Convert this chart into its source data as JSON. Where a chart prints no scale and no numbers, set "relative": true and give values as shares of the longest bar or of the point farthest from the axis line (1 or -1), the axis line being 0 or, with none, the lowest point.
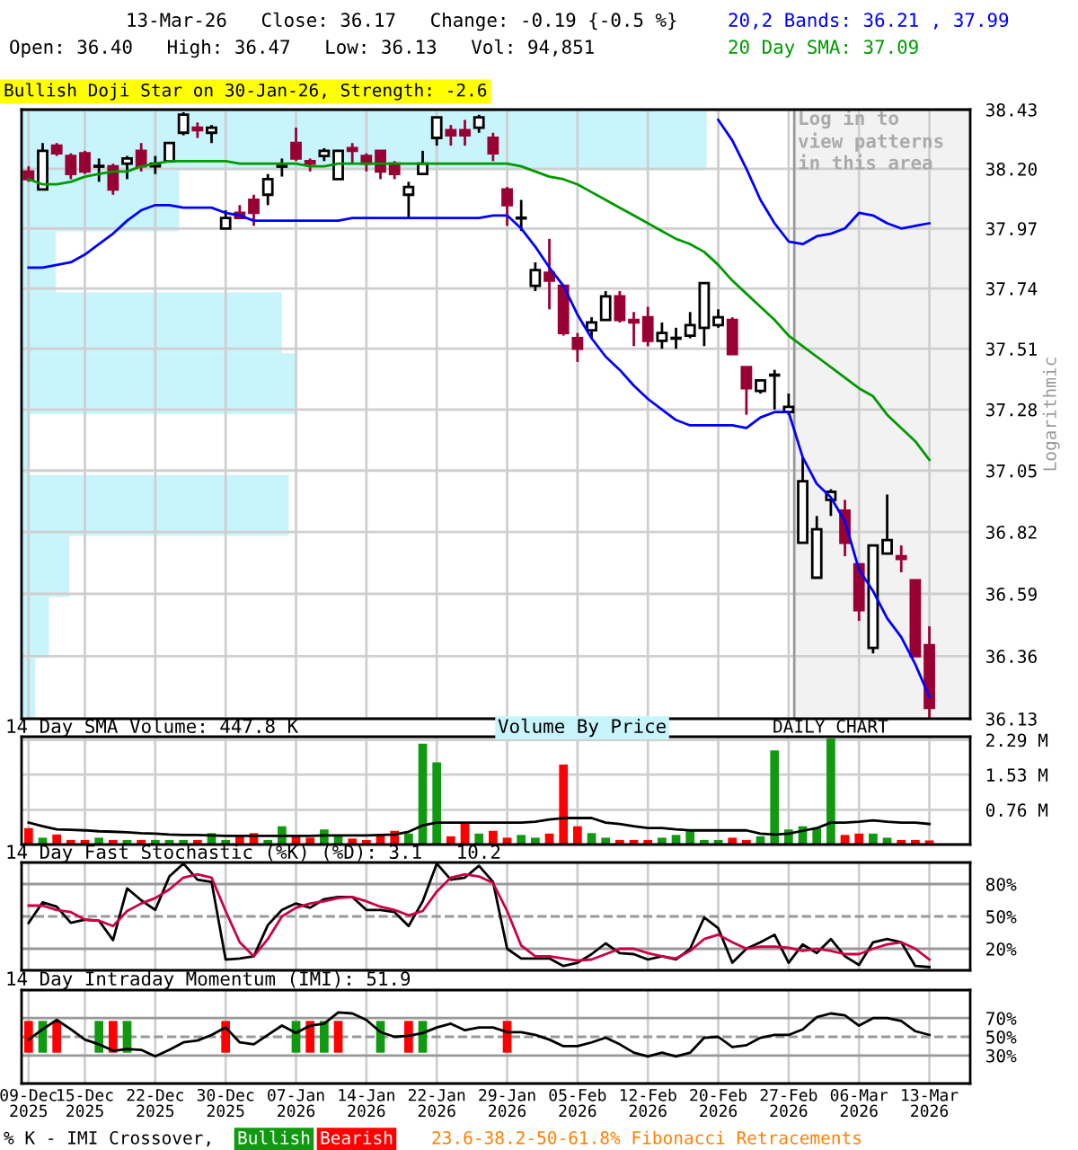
{
  "chart_data": [
    {
      "type": "candlestick",
      "title": "13-Mar-26   Close: 36.17   Change: -0.19 {-0.5 %}",
      "subtitle": "Open: 36.40   High: 36.47   Low: 36.13   Vol: 94,851",
      "ylabel": "Logarithmic",
      "annotations": [
        "Bullish Doji Star on 30-Jan-26, Strength: -2.6",
        "DAILY CHART"
      ],
      "categories": [
        "09-Dec 2025",
        null,
        null,
        null,
        "15-Dec 2025",
        null,
        null,
        null,
        null,
        "22-Dec 2025",
        null,
        null,
        null,
        null,
        "30-Dec 2025",
        null,
        null,
        null,
        null,
        "07-Jan 2026",
        null,
        null,
        null,
        null,
        "14-Jan 2026",
        null,
        null,
        null,
        null,
        "22-Jan 2026",
        null,
        null,
        null,
        null,
        "29-Jan 2026",
        null,
        null,
        null,
        null,
        "05-Feb 2026",
        null,
        null,
        null,
        null,
        "12-Feb 2026",
        null,
        null,
        null,
        null,
        "20-Feb 2026",
        null,
        null,
        null,
        null,
        "27-Feb 2026",
        null,
        null,
        null,
        null,
        "06-Mar 2026",
        null,
        null,
        null,
        null,
        "13-Mar 2026"
      ],
      "ohlc": [
        [
          38.19,
          38.21,
          38.15,
          38.16
        ],
        [
          38.12,
          38.3,
          38.12,
          38.27
        ],
        [
          38.29,
          38.3,
          38.25,
          38.26
        ],
        [
          38.25,
          38.26,
          38.16,
          38.18
        ],
        [
          38.26,
          38.27,
          38.18,
          38.19
        ],
        [
          38.21,
          38.24,
          38.15,
          38.21
        ],
        [
          38.21,
          38.22,
          38.1,
          38.12
        ],
        [
          38.22,
          38.25,
          38.16,
          38.24
        ],
        [
          38.27,
          38.3,
          38.19,
          38.21
        ],
        [
          38.21,
          38.25,
          38.18,
          38.22
        ],
        [
          38.23,
          38.3,
          38.23,
          38.3
        ],
        [
          38.34,
          38.42,
          38.33,
          38.41
        ],
        [
          38.36,
          38.38,
          38.32,
          38.35
        ],
        [
          38.34,
          38.37,
          38.3,
          38.36
        ],
        [
          37.97,
          38.04,
          37.97,
          38.01
        ],
        [
          38.03,
          38.06,
          38.01,
          38.01
        ],
        [
          38.08,
          38.1,
          37.98,
          38.03
        ],
        [
          38.1,
          38.18,
          38.06,
          38.16
        ],
        [
          38.21,
          38.24,
          38.17,
          38.21
        ],
        [
          38.3,
          38.36,
          38.23,
          38.24
        ],
        [
          38.23,
          38.24,
          38.19,
          38.22
        ],
        [
          38.25,
          38.28,
          38.23,
          38.27
        ],
        [
          38.16,
          38.27,
          38.16,
          38.27
        ],
        [
          38.28,
          38.3,
          38.22,
          38.27
        ],
        [
          38.25,
          38.26,
          38.19,
          38.22
        ],
        [
          38.27,
          38.27,
          38.16,
          38.19
        ],
        [
          38.22,
          38.23,
          38.16,
          38.18
        ],
        [
          38.1,
          38.15,
          38.01,
          38.13
        ],
        [
          38.18,
          38.27,
          38.18,
          38.22
        ],
        [
          38.32,
          38.4,
          38.29,
          38.4
        ],
        [
          38.35,
          38.37,
          38.29,
          38.33
        ],
        [
          38.35,
          38.39,
          38.29,
          38.33
        ],
        [
          38.36,
          38.41,
          38.34,
          38.4
        ],
        [
          38.32,
          38.34,
          38.23,
          38.26
        ],
        [
          38.12,
          38.13,
          37.98,
          38.06
        ],
        [
          38.01,
          38.08,
          37.96,
          38.01
        ],
        [
          37.75,
          37.84,
          37.73,
          37.81
        ],
        [
          37.8,
          37.93,
          37.66,
          37.77
        ],
        [
          37.75,
          37.75,
          37.56,
          37.57
        ],
        [
          37.55,
          37.57,
          37.46,
          37.51
        ],
        [
          37.58,
          37.63,
          37.55,
          37.61
        ],
        [
          37.62,
          37.73,
          37.62,
          37.71
        ],
        [
          37.71,
          37.73,
          37.61,
          37.62
        ],
        [
          37.62,
          37.65,
          37.52,
          37.61
        ],
        [
          37.63,
          37.67,
          37.52,
          37.54
        ],
        [
          37.54,
          37.61,
          37.51,
          37.57
        ],
        [
          37.55,
          37.59,
          37.51,
          37.55
        ],
        [
          37.56,
          37.65,
          37.55,
          37.6
        ],
        [
          37.59,
          37.76,
          37.52,
          37.76
        ],
        [
          37.6,
          37.66,
          37.59,
          37.63
        ],
        [
          37.62,
          37.63,
          37.49,
          37.49
        ],
        [
          37.44,
          37.44,
          37.26,
          37.36
        ],
        [
          37.35,
          37.39,
          37.34,
          37.39
        ],
        [
          37.41,
          37.43,
          37.28,
          37.41
        ],
        [
          37.27,
          37.34,
          37.26,
          37.29
        ],
        [
          36.78,
          37.1,
          36.78,
          37.01
        ],
        [
          36.65,
          36.88,
          36.65,
          36.83
        ],
        [
          36.94,
          36.98,
          36.88,
          36.97
        ],
        [
          36.9,
          36.94,
          36.73,
          36.78
        ],
        [
          36.7,
          36.7,
          36.49,
          36.53
        ],
        [
          36.39,
          36.77,
          36.37,
          36.77
        ],
        [
          36.74,
          36.96,
          36.74,
          36.79
        ],
        [
          36.73,
          36.77,
          36.67,
          36.72
        ],
        [
          36.64,
          36.64,
          36.36,
          36.36
        ],
        [
          36.4,
          36.47,
          36.13,
          36.17
        ]
      ],
      "colors": [
        "#990033",
        "#ffffff",
        "#990033",
        "#990033",
        "#990033",
        "#000000",
        "#990033",
        "#ffffff",
        "#990033",
        "#ffffff",
        "#ffffff",
        "#ffffff",
        "#990033",
        "#ffffff",
        "#ffffff",
        "#990033",
        "#990033",
        "#ffffff",
        "#000000",
        "#990033",
        "#990033",
        "#ffffff",
        "#ffffff",
        "#990033",
        "#990033",
        "#990033",
        "#990033",
        "#ffffff",
        "#ffffff",
        "#ffffff",
        "#990033",
        "#990033",
        "#ffffff",
        "#990033",
        "#990033",
        "#000000",
        "#ffffff",
        "#990033",
        "#990033",
        "#990033",
        "#ffffff",
        "#ffffff",
        "#990033",
        "#990033",
        "#990033",
        "#ffffff",
        "#000000",
        "#ffffff",
        "#ffffff",
        "#ffffff",
        "#990033",
        "#990033",
        "#ffffff",
        "#000000",
        "#ffffff",
        "#ffffff",
        "#ffffff",
        "#ffffff",
        "#990033",
        "#990033",
        "#ffffff",
        "#ffffff",
        "#990033",
        "#990033",
        "#990033"
      ],
      "series": [
        {
          "type": "line",
          "name": "20,2 Bands: 36.21 , 37.99",
          "color": "#0000ff",
          "values": [
            37.82,
            37.82,
            37.83,
            37.84,
            37.87,
            37.91,
            37.95,
            38.0,
            38.04,
            38.06,
            38.06,
            38.05,
            38.05,
            38.05,
            38.03,
            38.02,
            38.0,
            38.0,
            38.0,
            38.0,
            38.0,
            38.0,
            38.0,
            38.01,
            38.01,
            38.01,
            38.01,
            38.01,
            38.01,
            38.01,
            38.01,
            38.01,
            38.01,
            38.02,
            38.02,
            37.97,
            37.9,
            37.82,
            37.75,
            37.64,
            37.55,
            37.48,
            37.43,
            37.37,
            37.32,
            37.28,
            37.24,
            37.22,
            37.22,
            37.22,
            37.22,
            37.21,
            37.25,
            37.27,
            37.27,
            37.1,
            37.0,
            36.95,
            36.86,
            36.68,
            36.6,
            36.5,
            36.43,
            36.33,
            36.21
          ]
        },
        {
          "type": "line",
          "color": "#0000ff",
          "values": [
            null,
            null,
            null,
            null,
            null,
            null,
            null,
            null,
            null,
            null,
            null,
            null,
            null,
            null,
            null,
            null,
            null,
            null,
            null,
            null,
            null,
            null,
            null,
            null,
            null,
            null,
            null,
            null,
            null,
            null,
            null,
            null,
            null,
            null,
            null,
            null,
            null,
            null,
            null,
            null,
            null,
            null,
            null,
            null,
            null,
            null,
            null,
            null,
            null,
            38.39,
            38.31,
            38.2,
            38.08,
            37.99,
            37.92,
            37.91,
            37.94,
            37.95,
            37.97,
            38.03,
            38.02,
            37.99,
            37.97,
            37.98,
            37.99
          ]
        },
        {
          "type": "line",
          "name": "20 Day SMA: 37.09",
          "color": "#009900",
          "values": [
            38.16,
            38.14,
            38.14,
            38.15,
            38.17,
            38.18,
            38.19,
            38.19,
            38.21,
            38.22,
            38.23,
            38.23,
            38.23,
            38.23,
            38.23,
            38.22,
            38.22,
            38.22,
            38.22,
            38.22,
            38.21,
            38.21,
            38.22,
            38.22,
            38.22,
            38.22,
            38.22,
            38.22,
            38.22,
            38.22,
            38.22,
            38.22,
            38.22,
            38.22,
            38.22,
            38.21,
            38.19,
            38.17,
            38.16,
            38.14,
            38.11,
            38.08,
            38.05,
            38.02,
            37.99,
            37.96,
            37.93,
            37.91,
            37.88,
            37.83,
            37.77,
            37.72,
            37.67,
            37.62,
            37.56,
            37.52,
            37.48,
            37.44,
            37.4,
            37.36,
            37.33,
            37.26,
            37.21,
            37.16,
            37.09
          ]
        }
      ],
      "ylim": [
        36.13,
        38.43
      ],
      "yticks": [
        36.13,
        36.36,
        36.59,
        36.82,
        37.05,
        37.28,
        37.51,
        37.74,
        37.97,
        {
          "value": 38.2,
          "label": "38.20"
        },
        38.43
      ],
      "log": "y",
      "grid": true,
      "tick_labels": "y",
      "legend": "top right",
      "bands": [
        {
          "axis": "x",
          "from": "27-Feb 2026",
          "to": "13-Mar 2026",
          "label": "Log in to view patterns in this area",
          "color": "#f2f2f2"
        }
      ]
    },
    {
      "type": "bar",
      "orientation": "horizontal",
      "relative": true,
      "title": "Volume By Price",
      "categories": [
        null,
        null,
        null,
        null,
        null,
        null,
        null,
        null,
        null,
        null
      ],
      "values": [
        1.0,
        0.23,
        0.05,
        0.38,
        0.4,
        0.01,
        0.39,
        0.07,
        0.04,
        0.02
      ],
      "color": "#c8f4fc"
    },
    {
      "type": "bar",
      "title": "14 Day SMA Volume: 447.8 K",
      "categories": [
        "09-Dec 2025",
        null,
        null,
        null,
        "15-Dec 2025",
        null,
        null,
        null,
        null,
        "22-Dec 2025",
        null,
        null,
        null,
        null,
        "30-Dec 2025",
        null,
        null,
        null,
        null,
        "07-Jan 2026",
        null,
        null,
        null,
        null,
        "14-Jan 2026",
        null,
        null,
        null,
        null,
        "22-Jan 2026",
        null,
        null,
        null,
        null,
        "29-Jan 2026",
        null,
        null,
        null,
        null,
        "05-Feb 2026",
        null,
        null,
        null,
        null,
        "12-Feb 2026",
        null,
        null,
        null,
        null,
        "20-Feb 2026",
        null,
        null,
        null,
        null,
        "27-Feb 2026",
        null,
        null,
        null,
        null,
        "06-Mar 2026",
        null,
        null,
        null,
        null,
        "13-Mar 2026"
      ],
      "series": [
        {
          "values": [
            0.36,
            0.15,
            0.22,
            0.1,
            0.1,
            0.15,
            0.1,
            0.1,
            0.1,
            0.1,
            0.1,
            0.1,
            0.1,
            0.25,
            0.1,
            0.21,
            0.25,
            0.1,
            0.4,
            0.21,
            0.15,
            0.33,
            0.21,
            0.13,
            0.1,
            0.21,
            0.3,
            0.24,
            2.21,
            1.8,
            0.18,
            0.46,
            0.24,
            0.3,
            0.15,
            0.21,
            0.15,
            0.24,
            1.75,
            0.4,
            0.25,
            0.15,
            0.1,
            0.1,
            0.1,
            0.15,
            0.21,
            0.33,
            0.1,
            0.1,
            0.15,
            0.1,
            0.18,
            2.06,
            0.33,
            0.4,
            0.36,
            2.32,
            0.21,
            0.24,
            0.24,
            0.15,
            0.1,
            0.1,
            0.09
          ],
          "colors": [
            "#ff0000",
            "#119911",
            "#ff0000",
            "#ff0000",
            "#ff0000",
            "#119911",
            "#ff0000",
            "#119911",
            "#ff0000",
            "#119911",
            "#119911",
            "#119911",
            "#ff0000",
            "#119911",
            "#119911",
            "#ff0000",
            "#ff0000",
            "#119911",
            "#119911",
            "#ff0000",
            "#ff0000",
            "#119911",
            "#119911",
            "#ff0000",
            "#ff0000",
            "#ff0000",
            "#ff0000",
            "#119911",
            "#119911",
            "#119911",
            "#ff0000",
            "#ff0000",
            "#119911",
            "#ff0000",
            "#ff0000",
            "#119911",
            "#119911",
            "#ff0000",
            "#ff0000",
            "#ff0000",
            "#119911",
            "#119911",
            "#ff0000",
            "#ff0000",
            "#ff0000",
            "#119911",
            "#119911",
            "#119911",
            "#119911",
            "#119911",
            "#ff0000",
            "#ff0000",
            "#119911",
            "#119911",
            "#119911",
            "#119911",
            "#119911",
            "#119911",
            "#ff0000",
            "#ff0000",
            "#119911",
            "#119911",
            "#ff0000",
            "#ff0000",
            "#ff0000"
          ]
        },
        {
          "type": "line",
          "color": "#000000",
          "values": [
            0.48,
            0.4,
            0.33,
            0.32,
            0.31,
            0.29,
            0.28,
            0.27,
            0.25,
            0.24,
            0.22,
            0.21,
            0.21,
            0.2,
            0.19,
            0.19,
            0.19,
            0.19,
            0.19,
            0.19,
            0.19,
            0.2,
            0.2,
            0.2,
            0.2,
            0.21,
            0.22,
            0.28,
            0.42,
            0.48,
            0.48,
            0.48,
            0.48,
            0.48,
            0.48,
            0.48,
            0.5,
            0.55,
            0.58,
            0.58,
            0.58,
            0.48,
            0.45,
            0.4,
            0.36,
            0.36,
            0.33,
            0.31,
            0.31,
            0.31,
            0.31,
            0.31,
            0.24,
            0.22,
            0.24,
            0.3,
            0.36,
            0.48,
            0.48,
            0.5,
            0.53,
            0.5,
            0.48,
            0.48,
            0.45
          ]
        }
      ],
      "ylim": [
        0,
        2.36
      ],
      "yticks": [
        {
          "value": 0.76,
          "label": "0.76 M"
        },
        {
          "value": 1.53,
          "label": "1.53 M"
        },
        {
          "value": 2.29,
          "label": "2.29 M"
        }
      ],
      "grid": true,
      "tick_labels": "y"
    },
    {
      "type": "line",
      "title": "14 Day Fast Stochastic (%K) (%D): 3.1   10.2",
      "categories": [
        "09-Dec 2025",
        null,
        null,
        null,
        "15-Dec 2025",
        null,
        null,
        null,
        null,
        "22-Dec 2025",
        null,
        null,
        null,
        null,
        "30-Dec 2025",
        null,
        null,
        null,
        null,
        "07-Jan 2026",
        null,
        null,
        null,
        null,
        "14-Jan 2026",
        null,
        null,
        null,
        null,
        "22-Jan 2026",
        null,
        null,
        null,
        null,
        "29-Jan 2026",
        null,
        null,
        null,
        null,
        "05-Feb 2026",
        null,
        null,
        null,
        null,
        "12-Feb 2026",
        null,
        null,
        null,
        null,
        "20-Feb 2026",
        null,
        null,
        null,
        null,
        "27-Feb 2026",
        null,
        null,
        null,
        null,
        "06-Mar 2026",
        null,
        null,
        null,
        null,
        "13-Mar 2026"
      ],
      "series": [
        {
          "color": "#000000",
          "values": [
            44,
            63,
            59,
            44,
            47,
            46,
            28,
            76,
            65,
            56,
            87,
            99,
            84,
            82,
            10,
            11,
            13,
            42,
            56,
            62,
            58,
            66,
            68,
            68,
            56,
            56,
            54,
            41,
            64,
            99,
            84,
            86,
            97,
            82,
            20,
            11,
            11,
            11,
            4,
            7,
            15,
            25,
            16,
            15,
            10,
            13,
            10,
            20,
            49,
            39,
            7,
            20,
            26,
            33,
            7,
            24,
            16,
            29,
            13,
            5,
            26,
            29,
            26,
            4,
            3
          ]
        },
        {
          "color": "#cc0044",
          "values": [
            60,
            60,
            56,
            54,
            47,
            46,
            41,
            55,
            62,
            67,
            75,
            86,
            89,
            86,
            55,
            26,
            13,
            29,
            50,
            58,
            62,
            64,
            67,
            68,
            64,
            59,
            56,
            51,
            55,
            73,
            86,
            89,
            87,
            81,
            55,
            23,
            13,
            13,
            11,
            9,
            10,
            15,
            20,
            20,
            16,
            13,
            11,
            18,
            29,
            33,
            26,
            20,
            22,
            22,
            21,
            18,
            20,
            18,
            15,
            15,
            20,
            24,
            26,
            20,
            10
          ]
        }
      ],
      "ylim": [
        0,
        100
      ],
      "yticks": [
        {
          "value": 20,
          "label": "20%"
        },
        {
          "value": 50,
          "label": "50%"
        },
        {
          "value": 80,
          "label": "80%"
        }
      ],
      "grid": "x",
      "tick_labels": "y",
      "ref_lines": [
        {
          "axis": "y",
          "value": 20,
          "color": "#999999"
        },
        {
          "axis": "y",
          "value": 50,
          "color": "#999999",
          "line_style": "dashed"
        },
        {
          "axis": "y",
          "value": 80,
          "color": "#999999"
        }
      ]
    },
    {
      "type": "line",
      "title": "14 Day Intraday Momentum (IMI): 51.9",
      "annotations": [
        "% K - IMI Crossover,",
        "23.6-38.2-50-61.8% Fibonacci Retracements"
      ],
      "categories": [
        "09-Dec 2025",
        null,
        null,
        null,
        "15-Dec 2025",
        null,
        null,
        null,
        null,
        "22-Dec 2025",
        null,
        null,
        null,
        null,
        "30-Dec 2025",
        null,
        null,
        null,
        null,
        "07-Jan 2026",
        null,
        null,
        null,
        null,
        "14-Jan 2026",
        null,
        null,
        null,
        null,
        "22-Jan 2026",
        null,
        null,
        null,
        null,
        "29-Jan 2026",
        null,
        null,
        null,
        null,
        "05-Feb 2026",
        null,
        null,
        null,
        null,
        "12-Feb 2026",
        null,
        null,
        null,
        null,
        "20-Feb 2026",
        null,
        null,
        null,
        null,
        "27-Feb 2026",
        null,
        null,
        null,
        null,
        "06-Mar 2026",
        null,
        null,
        null,
        null,
        "13-Mar 2026"
      ],
      "series": [
        {
          "type": "bar",
          "name": "Bullish",
          "color": "#119911",
          "values": [
            null,
            34,
            null,
            null,
            null,
            34,
            null,
            34,
            null,
            null,
            null,
            null,
            null,
            null,
            null,
            null,
            null,
            null,
            null,
            34,
            null,
            34,
            null,
            null,
            null,
            34,
            null,
            null,
            34,
            null,
            null,
            null,
            null,
            null,
            null,
            null,
            null,
            null,
            null,
            null,
            null,
            null,
            null,
            null,
            null,
            null,
            null,
            null,
            null,
            null,
            null,
            null,
            null,
            null,
            null,
            null,
            null,
            null,
            null,
            null,
            null,
            null,
            null,
            null,
            null
          ],
          "base": [
            null,
            33,
            null,
            null,
            null,
            33,
            null,
            33,
            null,
            null,
            null,
            null,
            null,
            null,
            null,
            null,
            null,
            null,
            null,
            33,
            null,
            33,
            null,
            null,
            null,
            33,
            null,
            null,
            33,
            null,
            null,
            null,
            null,
            null,
            null,
            null,
            null,
            null,
            null,
            null,
            null,
            null,
            null,
            null,
            null,
            null,
            null,
            null,
            null,
            null,
            null,
            null,
            null,
            null,
            null,
            null,
            null,
            null,
            null,
            null,
            null,
            null,
            null,
            null,
            null
          ]
        },
        {
          "type": "bar",
          "name": "Bearish",
          "color": "#ff0000",
          "values": [
            34,
            null,
            34,
            null,
            null,
            null,
            34,
            null,
            null,
            null,
            null,
            null,
            null,
            null,
            34,
            null,
            null,
            null,
            null,
            null,
            34,
            null,
            34,
            null,
            null,
            null,
            null,
            34,
            null,
            null,
            null,
            null,
            null,
            null,
            34,
            null,
            null,
            null,
            null,
            null,
            null,
            null,
            null,
            null,
            null,
            null,
            null,
            null,
            null,
            null,
            null,
            null,
            null,
            null,
            null,
            null,
            null,
            null,
            null,
            null,
            null,
            null,
            null,
            null,
            null
          ],
          "base": [
            33,
            null,
            33,
            null,
            null,
            null,
            33,
            null,
            null,
            null,
            null,
            null,
            null,
            null,
            33,
            null,
            null,
            null,
            null,
            null,
            33,
            null,
            33,
            null,
            null,
            null,
            null,
            33,
            null,
            null,
            null,
            null,
            null,
            null,
            33,
            null,
            null,
            null,
            null,
            null,
            null,
            null,
            null,
            null,
            null,
            null,
            null,
            null,
            null,
            null,
            null,
            null,
            null,
            null,
            null,
            null,
            null,
            null,
            null,
            null,
            null,
            null,
            null,
            null,
            null
          ]
        },
        {
          "color": "#000000",
          "values": [
            47,
            58,
            68,
            58,
            47,
            42,
            35,
            37,
            36,
            29,
            36,
            44,
            46,
            52,
            60,
            44,
            42,
            52,
            62,
            54,
            62,
            64,
            76,
            75,
            68,
            55,
            50,
            51,
            54,
            60,
            64,
            57,
            60,
            60,
            55,
            55,
            52,
            47,
            40,
            40,
            44,
            49,
            42,
            33,
            29,
            33,
            29,
            33,
            49,
            50,
            39,
            41,
            49,
            52,
            52,
            58,
            71,
            75,
            73,
            62,
            70,
            70,
            67,
            56,
            52
          ]
        }
      ],
      "ylim": [
        0,
        100
      ],
      "yticks": [
        {
          "value": 30,
          "label": "30%"
        },
        {
          "value": 50,
          "label": "50%"
        },
        {
          "value": 70,
          "label": "70%"
        }
      ],
      "grid": "x",
      "legend": "bottom",
      "ref_lines": [
        {
          "axis": "y",
          "value": 30,
          "color": "#999999"
        },
        {
          "axis": "y",
          "value": 50,
          "color": "#999999",
          "line_style": "dashed"
        },
        {
          "axis": "y",
          "value": 70,
          "color": "#999999"
        }
      ]
    }
  ]
}
